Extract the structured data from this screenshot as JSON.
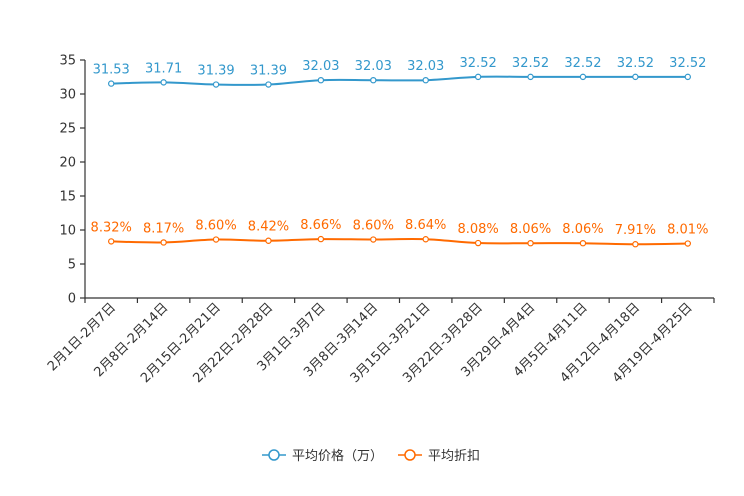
{
  "chart_data": {
    "type": "line",
    "title": "",
    "xlabel": "",
    "ylabel": "",
    "ylim": [
      0,
      35
    ],
    "yticks": [
      0,
      5,
      10,
      15,
      20,
      25,
      30,
      35
    ],
    "categories": [
      "2月1日-2月7日",
      "2月8日-2月14日",
      "2月15日-2月21日",
      "2月22日-2月28日",
      "3月1日-3月7日",
      "3月8日-3月14日",
      "3月15日-3月21日",
      "3月22日-3月28日",
      "3月29日-4月4日",
      "4月5日-4月11日",
      "4月12日-4月18日",
      "4月19日-4月25日"
    ],
    "series": [
      {
        "name": "平均价格（万）",
        "color": "#3398cc",
        "values": [
          31.53,
          31.71,
          31.39,
          31.39,
          32.03,
          32.03,
          32.03,
          32.52,
          32.52,
          32.52,
          32.52,
          32.52
        ],
        "labels": [
          "31.53",
          "31.71",
          "31.39",
          "31.39",
          "32.03",
          "32.03",
          "32.03",
          "32.52",
          "32.52",
          "32.52",
          "32.52",
          "32.52"
        ]
      },
      {
        "name": "平均折扣",
        "color": "#ff6a00",
        "values": [
          8.32,
          8.17,
          8.6,
          8.42,
          8.66,
          8.6,
          8.64,
          8.08,
          8.06,
          8.06,
          7.91,
          8.01
        ],
        "labels": [
          "8.32%",
          "8.17%",
          "8.60%",
          "8.42%",
          "8.66%",
          "8.60%",
          "8.64%",
          "8.08%",
          "8.06%",
          "8.06%",
          "7.91%",
          "8.01%"
        ]
      }
    ],
    "legend_position": "bottom-center"
  }
}
